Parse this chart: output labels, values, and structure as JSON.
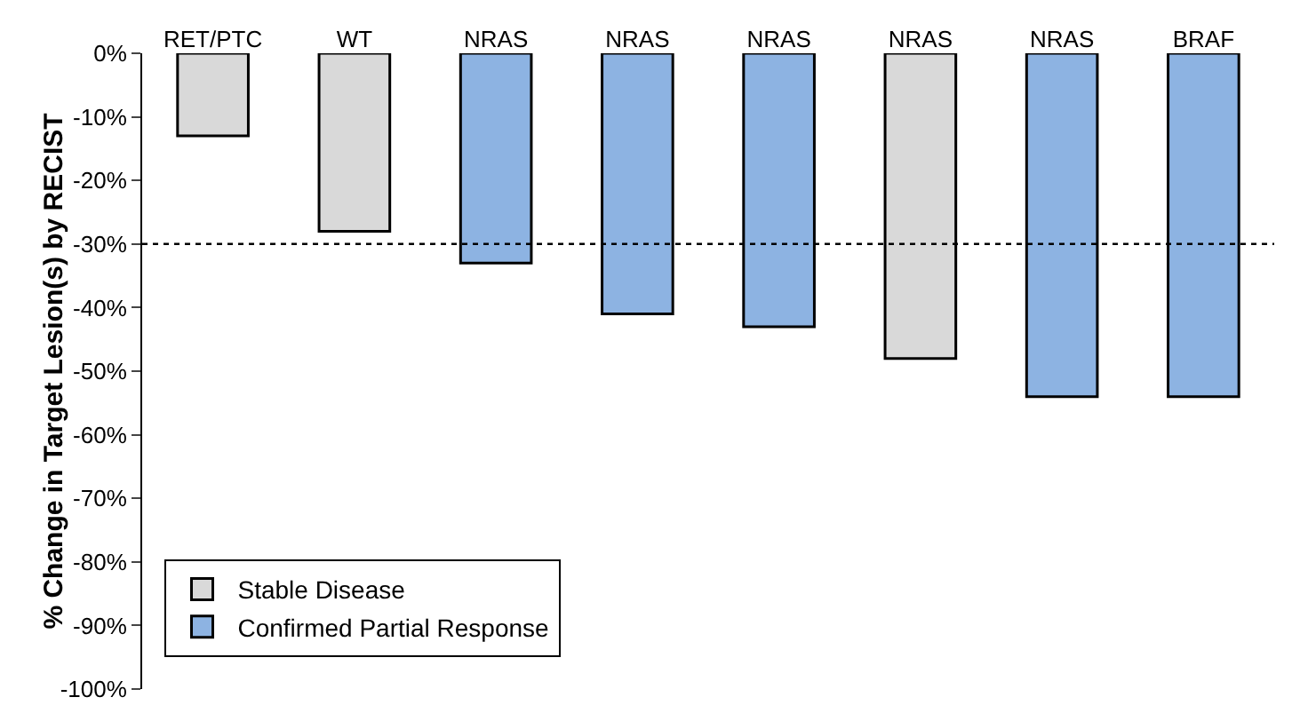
{
  "chart_data": {
    "type": "bar",
    "ylabel": "% Change in Target Lesion(s) by RECIST",
    "categories": [
      "RET/PTC",
      "WT",
      "NRAS",
      "NRAS",
      "NRAS",
      "NRAS",
      "NRAS",
      "BRAF"
    ],
    "series": [
      {
        "name": "Stable Disease",
        "color": "#d9d9d9",
        "values": [
          -13,
          -28,
          null,
          null,
          null,
          -48,
          null,
          null
        ]
      },
      {
        "name": "Confirmed Partial Response",
        "color": "#8db3e2",
        "values": [
          null,
          null,
          -33,
          -41,
          -43,
          null,
          -54,
          -54
        ]
      }
    ],
    "ylim": [
      -100,
      0
    ],
    "yticks": [
      {
        "value": 0,
        "label": "0%"
      },
      {
        "value": -10,
        "label": "-10%"
      },
      {
        "value": -20,
        "label": "-20%"
      },
      {
        "value": -30,
        "label": "-30%"
      },
      {
        "value": -40,
        "label": "-40%"
      },
      {
        "value": -50,
        "label": "-50%"
      },
      {
        "value": -60,
        "label": "-60%"
      },
      {
        "value": -70,
        "label": "-70%"
      },
      {
        "value": -80,
        "label": "-80%"
      },
      {
        "value": -90,
        "label": "-90%"
      },
      {
        "value": -100,
        "label": "-100%"
      }
    ],
    "ref_lines": [
      {
        "axis": "y",
        "value": -30,
        "line_style": "dotted",
        "color": "#000000"
      }
    ],
    "grid": false,
    "legend": "bottom left"
  }
}
